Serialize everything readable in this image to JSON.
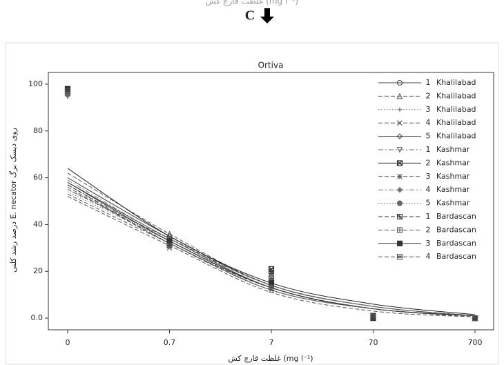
{
  "top_caption": "غلظت قارچ کش (mg l⁻¹)",
  "panel_label": "C",
  "chart_data": {
    "type": "line",
    "title": "Ortiva",
    "x_label": "غلظت قارچ کش (mg l⁻¹)",
    "y_label": "درصد رشد کلنی E. necator روی دیسک برگ",
    "categories": [
      "0",
      "0.7",
      "7",
      "70",
      "700"
    ],
    "ylim": [
      -5,
      105
    ],
    "yticks": [
      {
        "value": 0,
        "label": "0.0"
      },
      20,
      40,
      60,
      80,
      100
    ],
    "legend": "upper right",
    "series": [
      {
        "name": "Khalilabad",
        "isolate": "1",
        "color": "#444",
        "marker": "circle",
        "dash": "solid",
        "values": [
          96,
          33,
          14,
          1,
          0
        ],
        "fit": [
          58,
          34,
          13,
          4,
          1
        ]
      },
      {
        "name": "Khalilabad",
        "isolate": "2",
        "color": "#555",
        "marker": "triangle",
        "dash": "dash",
        "values": [
          97,
          36,
          16,
          0.5,
          0
        ],
        "fit": [
          62,
          36,
          14,
          5,
          1
        ]
      },
      {
        "name": "Khalilabad",
        "isolate": "3",
        "color": "#666",
        "marker": "plus",
        "dash": "dot",
        "values": [
          95,
          32,
          13,
          1,
          0
        ],
        "fit": [
          55,
          33,
          12,
          4,
          1
        ]
      },
      {
        "name": "Khalilabad",
        "isolate": "4",
        "color": "#555",
        "marker": "cross",
        "dash": "dash",
        "values": [
          96,
          30,
          12,
          0,
          0
        ],
        "fit": [
          52,
          31,
          11,
          3,
          0.5
        ]
      },
      {
        "name": "Khalilabad",
        "isolate": "5",
        "color": "#444",
        "marker": "diamond",
        "dash": "solid",
        "values": [
          98,
          35,
          18,
          0.5,
          0
        ],
        "fit": [
          60,
          35,
          14,
          5,
          1
        ]
      },
      {
        "name": "Kashmar",
        "isolate": "1",
        "color": "#666",
        "marker": "tri-down",
        "dash": "dashdot",
        "values": [
          95,
          33,
          15,
          1,
          0
        ],
        "fit": [
          57,
          33,
          13,
          4,
          1
        ]
      },
      {
        "name": "Kashmar",
        "isolate": "2",
        "color": "#222",
        "marker": "square-x",
        "dash": "solid",
        "values": [
          98,
          32,
          21,
          0,
          0
        ],
        "fit": [
          64,
          35,
          15,
          6,
          1.5
        ]
      },
      {
        "name": "Kashmar",
        "isolate": "3",
        "color": "#555",
        "marker": "star",
        "dash": "dash",
        "values": [
          97,
          31,
          14,
          1,
          0
        ],
        "fit": [
          56,
          32,
          12,
          4,
          1
        ]
      },
      {
        "name": "Kashmar",
        "isolate": "4",
        "color": "#777",
        "marker": "diamond-fill",
        "dash": "dashdot",
        "values": [
          96,
          34,
          19,
          0.5,
          0
        ],
        "fit": [
          59,
          34,
          14,
          5,
          1
        ]
      },
      {
        "name": "Kashmar",
        "isolate": "5",
        "color": "#666",
        "marker": "circle-fill",
        "dash": "dot",
        "values": [
          97,
          33,
          16,
          0,
          0
        ],
        "fit": [
          54,
          33,
          13,
          4,
          1
        ]
      },
      {
        "name": "Bardascan",
        "isolate": "1",
        "color": "#333",
        "marker": "square-star",
        "dash": "dash",
        "values": [
          98,
          32,
          20,
          1,
          0
        ],
        "fit": [
          57,
          32,
          13,
          4,
          1
        ]
      },
      {
        "name": "Bardascan",
        "isolate": "2",
        "color": "#555",
        "marker": "square-plus",
        "dash": "dash",
        "values": [
          96,
          34,
          17,
          0.5,
          0
        ],
        "fit": [
          55,
          34,
          14,
          5,
          1
        ]
      },
      {
        "name": "Bardascan",
        "isolate": "3",
        "color": "#333",
        "marker": "square-fill",
        "dash": "solid",
        "values": [
          98,
          33,
          15,
          0,
          0
        ],
        "fit": [
          58,
          33,
          13,
          4,
          1
        ]
      },
      {
        "name": "Bardascan",
        "isolate": "4",
        "color": "#555",
        "marker": "square-hash",
        "dash": "dash",
        "values": [
          97,
          31,
          13,
          0.5,
          0
        ],
        "fit": [
          53,
          32,
          12,
          4,
          0.5
        ]
      }
    ]
  }
}
